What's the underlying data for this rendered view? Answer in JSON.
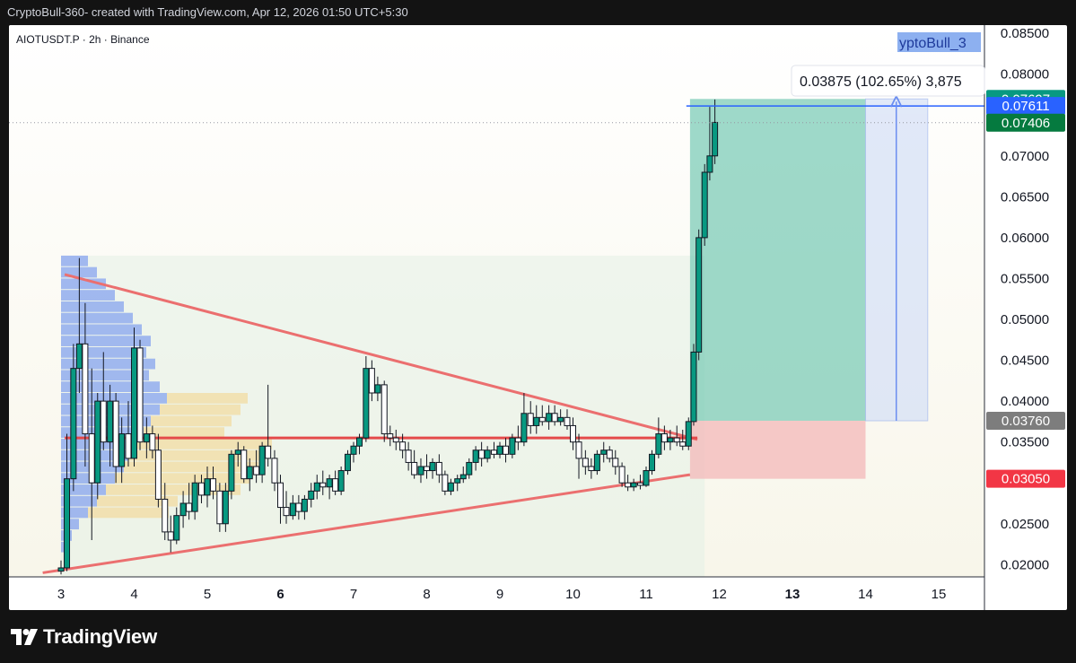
{
  "header": {
    "caption": "CryptoBull-360- created with TradingView.com, Apr 12, 2026 01:50 UTC+5:30"
  },
  "chart": {
    "symbol_line": "AIOTUSDT.P · 2h · Binance",
    "watermark": "yptoBull_3",
    "measure_tooltip": "0.03875 (102.65%) 3,875"
  },
  "price_labels": {
    "target": "0.07697",
    "line": "0.07611",
    "last": "0.07406",
    "entry": "0.03760",
    "stop": "0.03050"
  },
  "brand": {
    "name": "TradingView"
  },
  "colors": {
    "up": "#089981",
    "down": "#f23645",
    "target_zone": "#75c9b4",
    "stop_zone": "#f3b8b8",
    "trendline": "#eb6f6f",
    "blue_line": "#2962ff"
  },
  "chart_data": {
    "type": "candlestick",
    "x_axis": {
      "ticks": [
        "3",
        "4",
        "5",
        "6",
        "7",
        "8",
        "9",
        "10",
        "11",
        "12",
        "13",
        "14",
        "15"
      ],
      "bold_ticks": [
        "6",
        "13"
      ]
    },
    "y_axis": {
      "ticks": [
        "0.08500",
        "0.08000",
        "0.07500",
        "0.07000",
        "0.06500",
        "0.06000",
        "0.05500",
        "0.05000",
        "0.04500",
        "0.04000",
        "0.03500",
        "0.03000",
        "0.02500",
        "0.02000"
      ],
      "range": [
        0.0185,
        0.086
      ]
    },
    "candles": [
      {
        "d": 3.0,
        "o": 0.0192,
        "h": 0.0205,
        "l": 0.0188,
        "c": 0.0196
      },
      {
        "d": 3.08,
        "o": 0.0196,
        "h": 0.036,
        "l": 0.0192,
        "c": 0.0305
      },
      {
        "d": 3.17,
        "o": 0.0305,
        "h": 0.047,
        "l": 0.029,
        "c": 0.044
      },
      {
        "d": 3.25,
        "o": 0.044,
        "h": 0.0575,
        "l": 0.041,
        "c": 0.047
      },
      {
        "d": 3.33,
        "o": 0.047,
        "h": 0.052,
        "l": 0.032,
        "c": 0.036
      },
      {
        "d": 3.42,
        "o": 0.036,
        "h": 0.044,
        "l": 0.023,
        "c": 0.03
      },
      {
        "d": 3.5,
        "o": 0.03,
        "h": 0.041,
        "l": 0.028,
        "c": 0.04
      },
      {
        "d": 3.58,
        "o": 0.04,
        "h": 0.046,
        "l": 0.034,
        "c": 0.035
      },
      {
        "d": 3.67,
        "o": 0.035,
        "h": 0.042,
        "l": 0.032,
        "c": 0.04
      },
      {
        "d": 3.75,
        "o": 0.04,
        "h": 0.041,
        "l": 0.03,
        "c": 0.032
      },
      {
        "d": 3.83,
        "o": 0.032,
        "h": 0.038,
        "l": 0.03,
        "c": 0.036
      },
      {
        "d": 3.92,
        "o": 0.036,
        "h": 0.04,
        "l": 0.032,
        "c": 0.033
      },
      {
        "d": 4.0,
        "o": 0.033,
        "h": 0.049,
        "l": 0.032,
        "c": 0.0465
      },
      {
        "d": 4.08,
        "o": 0.0465,
        "h": 0.0475,
        "l": 0.034,
        "c": 0.035
      },
      {
        "d": 4.17,
        "o": 0.035,
        "h": 0.038,
        "l": 0.033,
        "c": 0.036
      },
      {
        "d": 4.25,
        "o": 0.036,
        "h": 0.037,
        "l": 0.033,
        "c": 0.034
      },
      {
        "d": 4.33,
        "o": 0.034,
        "h": 0.036,
        "l": 0.027,
        "c": 0.028
      },
      {
        "d": 4.42,
        "o": 0.028,
        "h": 0.03,
        "l": 0.023,
        "c": 0.024
      },
      {
        "d": 4.5,
        "o": 0.024,
        "h": 0.026,
        "l": 0.0215,
        "c": 0.023
      },
      {
        "d": 4.58,
        "o": 0.023,
        "h": 0.027,
        "l": 0.0225,
        "c": 0.026
      },
      {
        "d": 4.67,
        "o": 0.026,
        "h": 0.029,
        "l": 0.0245,
        "c": 0.0275
      },
      {
        "d": 4.75,
        "o": 0.0275,
        "h": 0.03,
        "l": 0.0255,
        "c": 0.0265
      },
      {
        "d": 4.83,
        "o": 0.0265,
        "h": 0.031,
        "l": 0.0255,
        "c": 0.03
      },
      {
        "d": 4.92,
        "o": 0.03,
        "h": 0.031,
        "l": 0.0275,
        "c": 0.0285
      },
      {
        "d": 5.0,
        "o": 0.0285,
        "h": 0.032,
        "l": 0.027,
        "c": 0.0305
      },
      {
        "d": 5.08,
        "o": 0.0305,
        "h": 0.032,
        "l": 0.028,
        "c": 0.029
      },
      {
        "d": 5.17,
        "o": 0.029,
        "h": 0.03,
        "l": 0.024,
        "c": 0.025
      },
      {
        "d": 5.25,
        "o": 0.025,
        "h": 0.03,
        "l": 0.024,
        "c": 0.029
      },
      {
        "d": 5.33,
        "o": 0.029,
        "h": 0.034,
        "l": 0.028,
        "c": 0.0335
      },
      {
        "d": 5.42,
        "o": 0.0335,
        "h": 0.035,
        "l": 0.032,
        "c": 0.034
      },
      {
        "d": 5.5,
        "o": 0.034,
        "h": 0.0345,
        "l": 0.03,
        "c": 0.0305
      },
      {
        "d": 5.58,
        "o": 0.0305,
        "h": 0.033,
        "l": 0.029,
        "c": 0.032
      },
      {
        "d": 5.67,
        "o": 0.032,
        "h": 0.034,
        "l": 0.03,
        "c": 0.031
      },
      {
        "d": 5.75,
        "o": 0.031,
        "h": 0.035,
        "l": 0.03,
        "c": 0.0345
      },
      {
        "d": 5.83,
        "o": 0.0345,
        "h": 0.042,
        "l": 0.032,
        "c": 0.033
      },
      {
        "d": 5.92,
        "o": 0.033,
        "h": 0.034,
        "l": 0.029,
        "c": 0.03
      },
      {
        "d": 6.0,
        "o": 0.03,
        "h": 0.031,
        "l": 0.025,
        "c": 0.027
      },
      {
        "d": 6.08,
        "o": 0.027,
        "h": 0.029,
        "l": 0.025,
        "c": 0.026
      },
      {
        "d": 6.17,
        "o": 0.026,
        "h": 0.0285,
        "l": 0.0255,
        "c": 0.0275
      },
      {
        "d": 6.25,
        "o": 0.0275,
        "h": 0.0285,
        "l": 0.0255,
        "c": 0.0265
      },
      {
        "d": 6.33,
        "o": 0.0265,
        "h": 0.0285,
        "l": 0.0255,
        "c": 0.028
      },
      {
        "d": 6.42,
        "o": 0.028,
        "h": 0.03,
        "l": 0.027,
        "c": 0.029
      },
      {
        "d": 6.5,
        "o": 0.029,
        "h": 0.031,
        "l": 0.028,
        "c": 0.03
      },
      {
        "d": 6.58,
        "o": 0.03,
        "h": 0.0315,
        "l": 0.0285,
        "c": 0.0295
      },
      {
        "d": 6.67,
        "o": 0.0295,
        "h": 0.031,
        "l": 0.028,
        "c": 0.0305
      },
      {
        "d": 6.75,
        "o": 0.0305,
        "h": 0.0315,
        "l": 0.0285,
        "c": 0.029
      },
      {
        "d": 6.83,
        "o": 0.029,
        "h": 0.032,
        "l": 0.0285,
        "c": 0.0315
      },
      {
        "d": 6.92,
        "o": 0.0315,
        "h": 0.034,
        "l": 0.031,
        "c": 0.0335
      },
      {
        "d": 7.0,
        "o": 0.0335,
        "h": 0.035,
        "l": 0.0325,
        "c": 0.0345
      },
      {
        "d": 7.08,
        "o": 0.0345,
        "h": 0.036,
        "l": 0.0335,
        "c": 0.0355
      },
      {
        "d": 7.17,
        "o": 0.0355,
        "h": 0.0455,
        "l": 0.035,
        "c": 0.044
      },
      {
        "d": 7.25,
        "o": 0.044,
        "h": 0.045,
        "l": 0.04,
        "c": 0.041
      },
      {
        "d": 7.33,
        "o": 0.041,
        "h": 0.043,
        "l": 0.04,
        "c": 0.042
      },
      {
        "d": 7.42,
        "o": 0.042,
        "h": 0.0425,
        "l": 0.035,
        "c": 0.036
      },
      {
        "d": 7.5,
        "o": 0.036,
        "h": 0.037,
        "l": 0.0345,
        "c": 0.0355
      },
      {
        "d": 7.58,
        "o": 0.0355,
        "h": 0.0365,
        "l": 0.034,
        "c": 0.035
      },
      {
        "d": 7.67,
        "o": 0.035,
        "h": 0.036,
        "l": 0.033,
        "c": 0.034
      },
      {
        "d": 7.75,
        "o": 0.034,
        "h": 0.035,
        "l": 0.0315,
        "c": 0.0325
      },
      {
        "d": 7.83,
        "o": 0.0325,
        "h": 0.034,
        "l": 0.0305,
        "c": 0.031
      },
      {
        "d": 7.92,
        "o": 0.031,
        "h": 0.033,
        "l": 0.03,
        "c": 0.032
      },
      {
        "d": 8.0,
        "o": 0.032,
        "h": 0.0335,
        "l": 0.0305,
        "c": 0.0315
      },
      {
        "d": 8.08,
        "o": 0.0315,
        "h": 0.033,
        "l": 0.0305,
        "c": 0.0325
      },
      {
        "d": 8.17,
        "o": 0.0325,
        "h": 0.0335,
        "l": 0.03,
        "c": 0.031
      },
      {
        "d": 8.25,
        "o": 0.031,
        "h": 0.0315,
        "l": 0.0285,
        "c": 0.029
      },
      {
        "d": 8.33,
        "o": 0.029,
        "h": 0.0305,
        "l": 0.0285,
        "c": 0.03
      },
      {
        "d": 8.42,
        "o": 0.03,
        "h": 0.031,
        "l": 0.029,
        "c": 0.0305
      },
      {
        "d": 8.5,
        "o": 0.0305,
        "h": 0.032,
        "l": 0.03,
        "c": 0.031
      },
      {
        "d": 8.58,
        "o": 0.031,
        "h": 0.033,
        "l": 0.0305,
        "c": 0.0325
      },
      {
        "d": 8.67,
        "o": 0.0325,
        "h": 0.0345,
        "l": 0.0315,
        "c": 0.034
      },
      {
        "d": 8.75,
        "o": 0.034,
        "h": 0.035,
        "l": 0.032,
        "c": 0.033
      },
      {
        "d": 8.83,
        "o": 0.033,
        "h": 0.0345,
        "l": 0.0325,
        "c": 0.034
      },
      {
        "d": 8.92,
        "o": 0.034,
        "h": 0.035,
        "l": 0.033,
        "c": 0.0335
      },
      {
        "d": 9.0,
        "o": 0.0335,
        "h": 0.035,
        "l": 0.033,
        "c": 0.0345
      },
      {
        "d": 9.08,
        "o": 0.0345,
        "h": 0.0355,
        "l": 0.0325,
        "c": 0.0335
      },
      {
        "d": 9.17,
        "o": 0.0335,
        "h": 0.036,
        "l": 0.033,
        "c": 0.0355
      },
      {
        "d": 9.25,
        "o": 0.0355,
        "h": 0.037,
        "l": 0.034,
        "c": 0.035
      },
      {
        "d": 9.33,
        "o": 0.035,
        "h": 0.041,
        "l": 0.0345,
        "c": 0.0385
      },
      {
        "d": 9.42,
        "o": 0.0385,
        "h": 0.04,
        "l": 0.036,
        "c": 0.037
      },
      {
        "d": 9.5,
        "o": 0.037,
        "h": 0.0395,
        "l": 0.036,
        "c": 0.038
      },
      {
        "d": 9.58,
        "o": 0.038,
        "h": 0.0395,
        "l": 0.037,
        "c": 0.0375
      },
      {
        "d": 9.67,
        "o": 0.0375,
        "h": 0.0395,
        "l": 0.0365,
        "c": 0.0385
      },
      {
        "d": 9.75,
        "o": 0.0385,
        "h": 0.0395,
        "l": 0.037,
        "c": 0.0375
      },
      {
        "d": 9.83,
        "o": 0.0375,
        "h": 0.039,
        "l": 0.037,
        "c": 0.038
      },
      {
        "d": 9.92,
        "o": 0.038,
        "h": 0.039,
        "l": 0.0365,
        "c": 0.037
      },
      {
        "d": 10.0,
        "o": 0.037,
        "h": 0.038,
        "l": 0.034,
        "c": 0.035
      },
      {
        "d": 10.08,
        "o": 0.035,
        "h": 0.036,
        "l": 0.0305,
        "c": 0.033
      },
      {
        "d": 10.17,
        "o": 0.033,
        "h": 0.034,
        "l": 0.031,
        "c": 0.032
      },
      {
        "d": 10.25,
        "o": 0.032,
        "h": 0.033,
        "l": 0.0305,
        "c": 0.0315
      },
      {
        "d": 10.33,
        "o": 0.0315,
        "h": 0.034,
        "l": 0.031,
        "c": 0.0335
      },
      {
        "d": 10.42,
        "o": 0.0335,
        "h": 0.035,
        "l": 0.0325,
        "c": 0.034
      },
      {
        "d": 10.5,
        "o": 0.034,
        "h": 0.0345,
        "l": 0.0325,
        "c": 0.033
      },
      {
        "d": 10.58,
        "o": 0.033,
        "h": 0.034,
        "l": 0.031,
        "c": 0.032
      },
      {
        "d": 10.67,
        "o": 0.032,
        "h": 0.0325,
        "l": 0.0295,
        "c": 0.03
      },
      {
        "d": 10.75,
        "o": 0.03,
        "h": 0.031,
        "l": 0.029,
        "c": 0.0295
      },
      {
        "d": 10.83,
        "o": 0.0295,
        "h": 0.0305,
        "l": 0.029,
        "c": 0.03
      },
      {
        "d": 10.92,
        "o": 0.03,
        "h": 0.031,
        "l": 0.0292,
        "c": 0.0297
      },
      {
        "d": 11.0,
        "o": 0.0297,
        "h": 0.032,
        "l": 0.0295,
        "c": 0.0315
      },
      {
        "d": 11.08,
        "o": 0.0315,
        "h": 0.034,
        "l": 0.031,
        "c": 0.0335
      },
      {
        "d": 11.17,
        "o": 0.0335,
        "h": 0.038,
        "l": 0.033,
        "c": 0.036
      },
      {
        "d": 11.25,
        "o": 0.036,
        "h": 0.037,
        "l": 0.034,
        "c": 0.035
      },
      {
        "d": 11.33,
        "o": 0.035,
        "h": 0.0365,
        "l": 0.034,
        "c": 0.0355
      },
      {
        "d": 11.42,
        "o": 0.0355,
        "h": 0.037,
        "l": 0.0345,
        "c": 0.035
      },
      {
        "d": 11.5,
        "o": 0.035,
        "h": 0.0365,
        "l": 0.034,
        "c": 0.0345
      },
      {
        "d": 11.58,
        "o": 0.0345,
        "h": 0.038,
        "l": 0.034,
        "c": 0.0375
      },
      {
        "d": 11.65,
        "o": 0.0375,
        "h": 0.047,
        "l": 0.037,
        "c": 0.046
      },
      {
        "d": 11.72,
        "o": 0.046,
        "h": 0.061,
        "l": 0.045,
        "c": 0.06
      },
      {
        "d": 11.8,
        "o": 0.06,
        "h": 0.069,
        "l": 0.059,
        "c": 0.068
      },
      {
        "d": 11.87,
        "o": 0.068,
        "h": 0.076,
        "l": 0.067,
        "c": 0.07
      },
      {
        "d": 11.94,
        "o": 0.07,
        "h": 0.0769,
        "l": 0.069,
        "c": 0.0741
      }
    ]
  }
}
